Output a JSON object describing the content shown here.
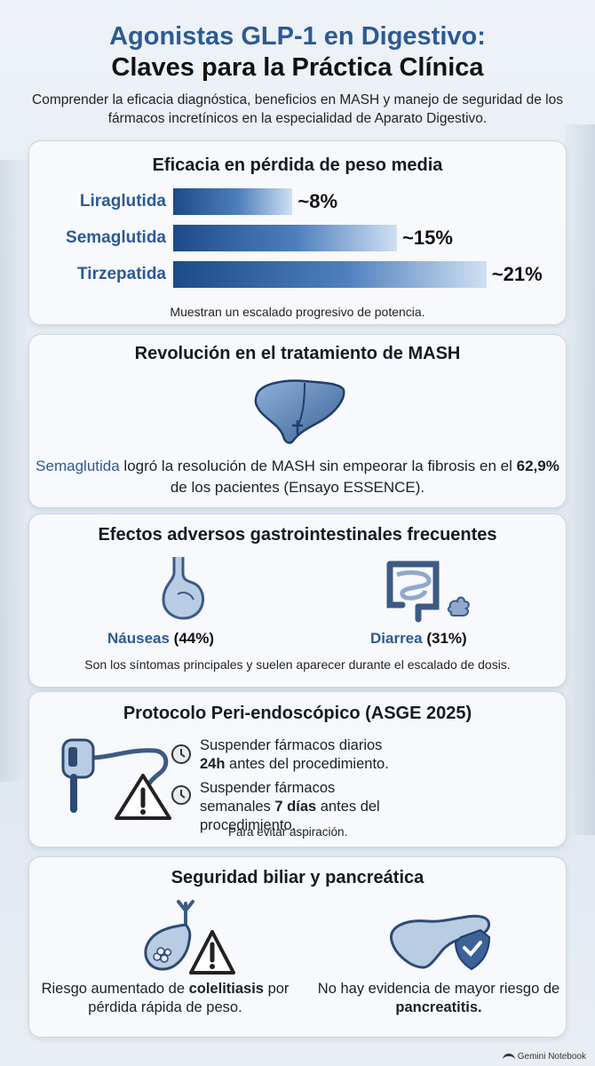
{
  "header": {
    "title_line1": "Agonistas GLP-1 en Digestivo:",
    "title_line2": "Claves para la Práctica Clínica",
    "subtitle": "Comprender la eficacia diagnóstica, beneficios en MASH y manejo de seguridad de los fármacos incretínicos en la especialidad de Aparato Digestivo."
  },
  "weight_loss": {
    "title": "Eficacia en pérdida de peso media",
    "note": "Muestran un escalado progresivo de potencia.",
    "drugs": [
      {
        "name": "Liraglutida",
        "value_label": "~8%",
        "value": 8
      },
      {
        "name": "Semaglutida",
        "value_label": "~15%",
        "value": 15
      },
      {
        "name": "Tirzepatida",
        "value_label": "~21%",
        "value": 21
      }
    ]
  },
  "mash": {
    "title": "Revolución en el tratamiento de MASH",
    "icon": "liver-icon",
    "text_drug": "Semaglutida",
    "text_part1": " logró la resolución de MASH sin empeorar la fibrosis en el ",
    "text_pct": "62,9%",
    "text_part2": " de los pacientes (Ensayo ESSENCE)."
  },
  "adverse": {
    "title": "Efectos adversos gastrointestinales frecuentes",
    "nausea_label": "Náuseas",
    "nausea_pct": "(44%)",
    "diarrhea_label": "Diarrea",
    "diarrhea_pct": "(31%)",
    "note": "Son los síntomas principales y suelen aparecer durante el escalado de dosis."
  },
  "protocol": {
    "title": "Protocolo Peri-endoscópico (ASGE 2025)",
    "item1_a": "Suspender fármacos diarios ",
    "item1_b": "24h",
    "item1_c": " antes del procedimiento.",
    "item2_a": "Suspender fármacos semanales ",
    "item2_b": "7 días",
    "item2_c": " antes del procedimiento.",
    "note": "Para evitar aspiración."
  },
  "biliary": {
    "title": "Seguridad biliar y pancreática",
    "left_a": "Riesgo aumentado de ",
    "left_b": "colelitiasis",
    "left_c": " por pérdida rápida de peso.",
    "right_a": "No hay evidencia de mayor riesgo de ",
    "right_b": "pancreatitis."
  },
  "footer": {
    "brand": "Gemini Notebook"
  },
  "colors": {
    "accent": "#2c5a96",
    "bar_dark": "#1d4a88",
    "bar_light": "#cfe0f3"
  }
}
